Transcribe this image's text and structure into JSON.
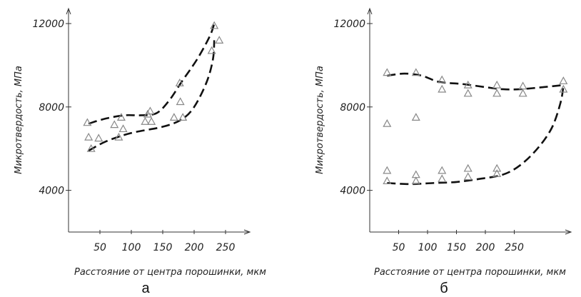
{
  "chart_data": [
    {
      "panel_label": "а",
      "type": "scatter",
      "xlabel": "Расстояние от центра порошинки, мкм",
      "ylabel": "Микротвердость, МПа",
      "xticks": [
        50,
        100,
        150,
        200,
        250
      ],
      "yticks": [
        4000,
        8000,
        12000
      ],
      "xlim": [
        0,
        295
      ],
      "ylim": [
        2000,
        13000
      ],
      "grid": false,
      "points": [
        [
          30,
          7250
        ],
        [
          32,
          6550
        ],
        [
          36,
          6000
        ],
        [
          48,
          6500
        ],
        [
          73,
          7150
        ],
        [
          80,
          6550
        ],
        [
          84,
          7500
        ],
        [
          87,
          6950
        ],
        [
          122,
          7300
        ],
        [
          126,
          7650
        ],
        [
          130,
          7800
        ],
        [
          132,
          7300
        ],
        [
          168,
          7500
        ],
        [
          177,
          9150
        ],
        [
          178,
          8250
        ],
        [
          182,
          7500
        ],
        [
          228,
          10700
        ],
        [
          232,
          11900
        ],
        [
          240,
          11200
        ]
      ],
      "curves": [
        [
          [
            32,
            7200
          ],
          [
            60,
            7450
          ],
          [
            90,
            7600
          ],
          [
            115,
            7600
          ],
          [
            140,
            7700
          ],
          [
            160,
            8300
          ],
          [
            180,
            9200
          ],
          [
            205,
            10300
          ],
          [
            225,
            11400
          ],
          [
            232,
            12000
          ]
        ],
        [
          [
            32,
            5900
          ],
          [
            60,
            6350
          ],
          [
            100,
            6750
          ],
          [
            150,
            7050
          ],
          [
            180,
            7400
          ],
          [
            200,
            8000
          ],
          [
            220,
            9200
          ],
          [
            230,
            10300
          ],
          [
            232,
            11200
          ]
        ]
      ]
    },
    {
      "panel_label": "б",
      "type": "scatter",
      "xlabel": "Расстояние от центра порошинки, мкм",
      "ylabel": "Микротвердость, МПа",
      "xticks": [
        50,
        100,
        150,
        200,
        250
      ],
      "yticks": [
        4000,
        8000,
        12000
      ],
      "xlim": [
        0,
        345
      ],
      "ylim": [
        2000,
        13000
      ],
      "grid": false,
      "points": [
        [
          30,
          9650
        ],
        [
          30,
          7200
        ],
        [
          30,
          4950
        ],
        [
          30,
          4450
        ],
        [
          80,
          9650
        ],
        [
          80,
          7500
        ],
        [
          80,
          4750
        ],
        [
          80,
          4450
        ],
        [
          125,
          9300
        ],
        [
          125,
          8850
        ],
        [
          125,
          4950
        ],
        [
          125,
          4550
        ],
        [
          170,
          9050
        ],
        [
          170,
          8650
        ],
        [
          170,
          5050
        ],
        [
          170,
          4650
        ],
        [
          220,
          9050
        ],
        [
          220,
          8650
        ],
        [
          220,
          5050
        ],
        [
          220,
          4800
        ],
        [
          265,
          9000
        ],
        [
          265,
          8650
        ],
        [
          335,
          9250
        ],
        [
          335,
          8850
        ]
      ],
      "curves": [
        [
          [
            30,
            9500
          ],
          [
            60,
            9600
          ],
          [
            90,
            9500
          ],
          [
            120,
            9200
          ],
          [
            160,
            9100
          ],
          [
            200,
            8950
          ],
          [
            230,
            8850
          ],
          [
            260,
            8850
          ],
          [
            300,
            8950
          ],
          [
            335,
            9050
          ]
        ],
        [
          [
            30,
            4350
          ],
          [
            70,
            4300
          ],
          [
            110,
            4350
          ],
          [
            150,
            4400
          ],
          [
            190,
            4550
          ],
          [
            230,
            4750
          ],
          [
            260,
            5200
          ],
          [
            290,
            6000
          ],
          [
            315,
            7000
          ],
          [
            330,
            8200
          ],
          [
            335,
            9000
          ]
        ]
      ]
    }
  ]
}
